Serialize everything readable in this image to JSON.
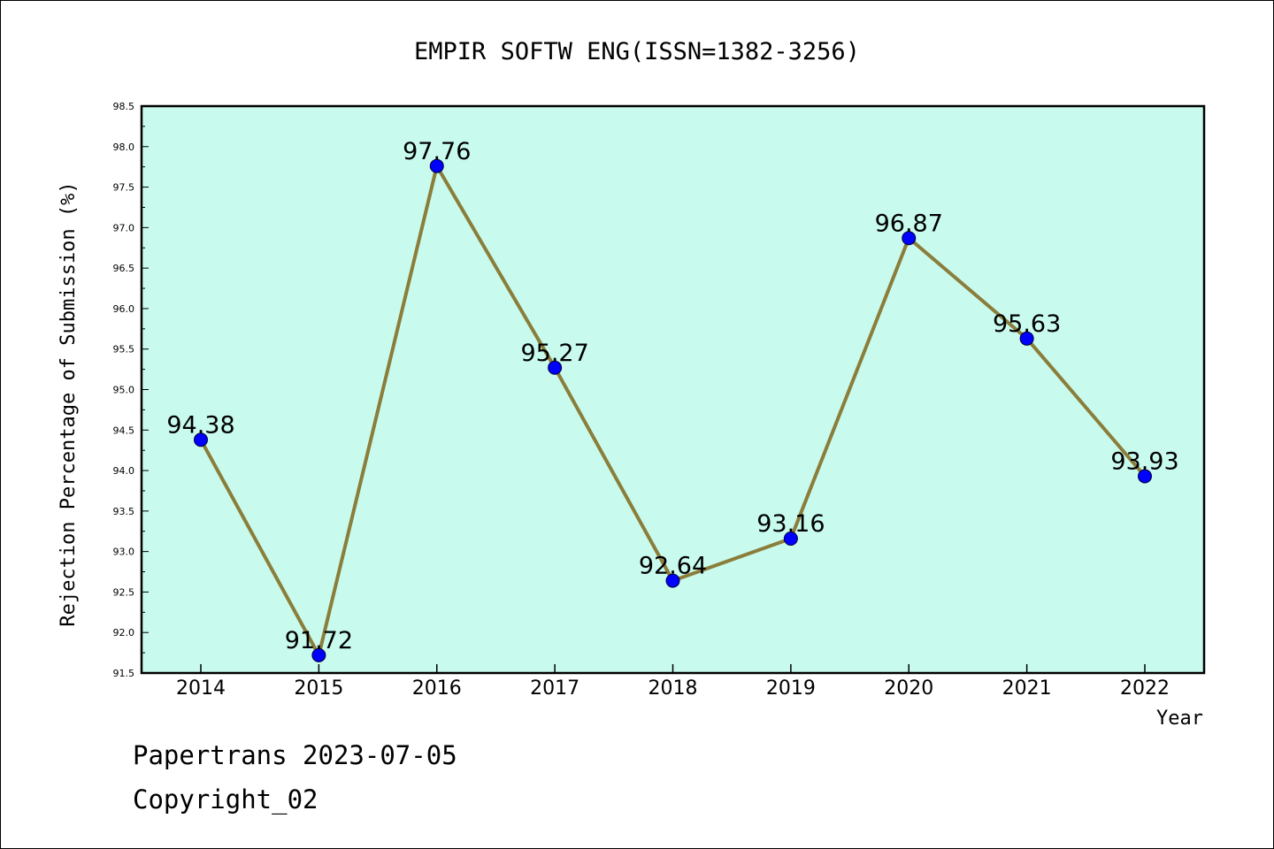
{
  "chart_data": {
    "type": "line",
    "title": "EMPIR SOFTW ENG(ISSN=1382-3256)",
    "xlabel": "Year",
    "ylabel": "Rejection Percentage of Submission (%)",
    "categories": [
      "2014",
      "2015",
      "2016",
      "2017",
      "2018",
      "2019",
      "2020",
      "2021",
      "2022"
    ],
    "values": [
      94.38,
      91.72,
      97.76,
      95.27,
      92.64,
      93.16,
      96.87,
      95.63,
      93.93
    ],
    "data_labels": [
      "94.38",
      "91.72",
      "97.76",
      "95.27",
      "92.64",
      "93.16",
      "96.87",
      "95.63",
      "93.93"
    ],
    "ylim": [
      91.5,
      98.5
    ],
    "yticks": [
      "91.5",
      "92.0",
      "92.5",
      "93.0",
      "93.5",
      "94.0",
      "94.5",
      "95.0",
      "95.5",
      "96.0",
      "96.5",
      "97.0",
      "97.5",
      "98.0",
      "98.5"
    ],
    "grid": false,
    "colors": {
      "plot_background": "#c8fbee",
      "line": "#8b7d3a",
      "marker": "#0000ff"
    }
  },
  "footer": {
    "line1": "Papertrans 2023-07-05",
    "line2": "Copyright_02"
  }
}
